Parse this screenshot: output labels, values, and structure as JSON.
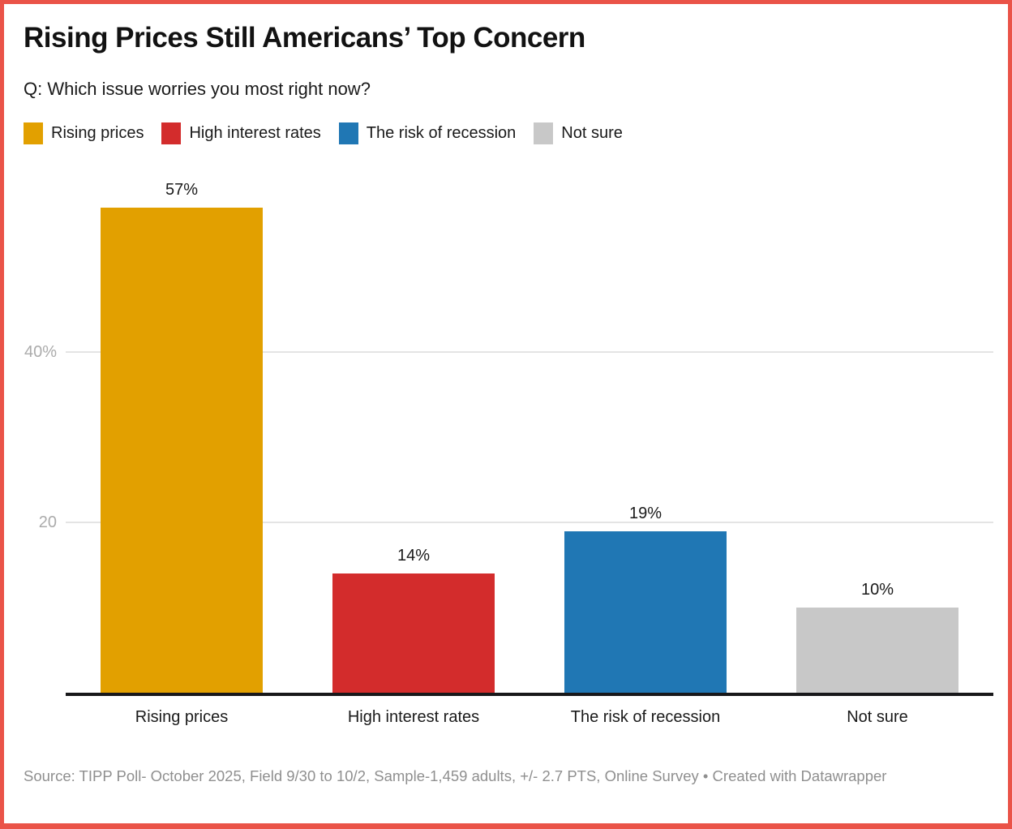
{
  "header": {
    "title": "Rising Prices Still Americans’ Top Concern",
    "subtitle": "Q: Which issue worries you most right now?"
  },
  "chart_data": {
    "type": "bar",
    "title": "Rising Prices Still Americans’ Top Concern",
    "subtitle": "Q: Which issue worries you most right now?",
    "categories": [
      "Rising prices",
      "High interest rates",
      "The risk of recession",
      "Not sure"
    ],
    "values": [
      57,
      14,
      19,
      10
    ],
    "value_labels": [
      "57%",
      "14%",
      "19%",
      "10%"
    ],
    "colors": [
      "#E2A000",
      "#D32C2C",
      "#2077B4",
      "#C8C8C8"
    ],
    "xlabel": "",
    "ylabel": "",
    "ylim": [
      0,
      60
    ],
    "yticks": [
      {
        "value": 20,
        "label": "20"
      },
      {
        "value": 40,
        "label": "40%"
      }
    ],
    "grid": true,
    "legend_position": "top"
  },
  "footer": {
    "source": "Source: TIPP Poll- October 2025, Field 9/30 to 10/2, Sample-1,459 adults, +/- 2.7 PTS, Online Survey",
    "separator": " • ",
    "attribution": "Created with Datawrapper"
  },
  "colors": {
    "frame_border": "#EA5348",
    "gridline": "#E4E4E4",
    "axis_line": "#18181A",
    "tick_label": "#ABABAB",
    "text": "#1A1A1A",
    "footer_text": "#8F8F8F"
  }
}
